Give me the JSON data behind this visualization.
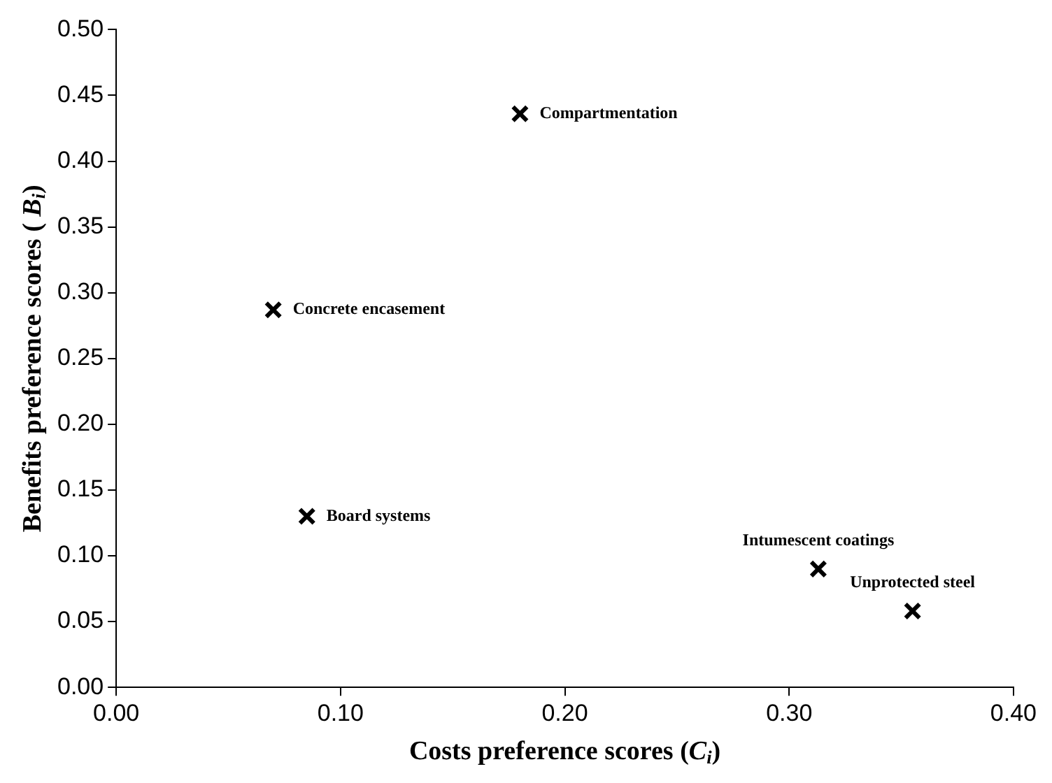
{
  "chart_data": {
    "type": "scatter",
    "xlabel": "Costs preference scores (C$_{i}$)",
    "ylabel": "Benefits preference scores ( B$_{i}$)",
    "x": [
      0.18,
      0.07,
      0.085,
      0.313,
      0.355
    ],
    "values": [
      0.436,
      0.287,
      0.13,
      0.09,
      0.058
    ],
    "color": "#000000",
    "marker": "cross",
    "grid": false,
    "legend": false,
    "xlim": [
      0,
      0.4
    ],
    "ylim": [
      0,
      0.5
    ],
    "xticks": [
      {
        "value": 0,
        "label": "0.00"
      },
      {
        "value": 0.1,
        "label": "0.10"
      },
      {
        "value": 0.2,
        "label": "0.20"
      },
      {
        "value": 0.3,
        "label": "0.30"
      },
      {
        "value": 0.4,
        "label": "0.40"
      }
    ],
    "yticks": [
      {
        "value": 0,
        "label": "0.00"
      },
      {
        "value": 0.05,
        "label": "0.05"
      },
      {
        "value": 0.1,
        "label": "0.10"
      },
      {
        "value": 0.15,
        "label": "0.15"
      },
      {
        "value": 0.2,
        "label": "0.20"
      },
      {
        "value": 0.25,
        "label": "0.25"
      },
      {
        "value": 0.3,
        "label": "0.30"
      },
      {
        "value": 0.35,
        "label": "0.35"
      },
      {
        "value": 0.4,
        "label": "0.40"
      },
      {
        "value": 0.45,
        "label": "0.45"
      },
      {
        "value": 0.5,
        "label": "0.50"
      }
    ],
    "annotations": [
      {
        "text": "Compartmentation",
        "x": 0.18,
        "y": 0.436
      },
      {
        "text": "Concrete encasement",
        "x": 0.07,
        "y": 0.287
      },
      {
        "text": "Board systems",
        "x": 0.085,
        "y": 0.13
      },
      {
        "text": "Intumescent coatings",
        "x": 0.313,
        "y": 0.09
      },
      {
        "text": "Unprotected steel",
        "x": 0.355,
        "y": 0.058
      }
    ]
  }
}
